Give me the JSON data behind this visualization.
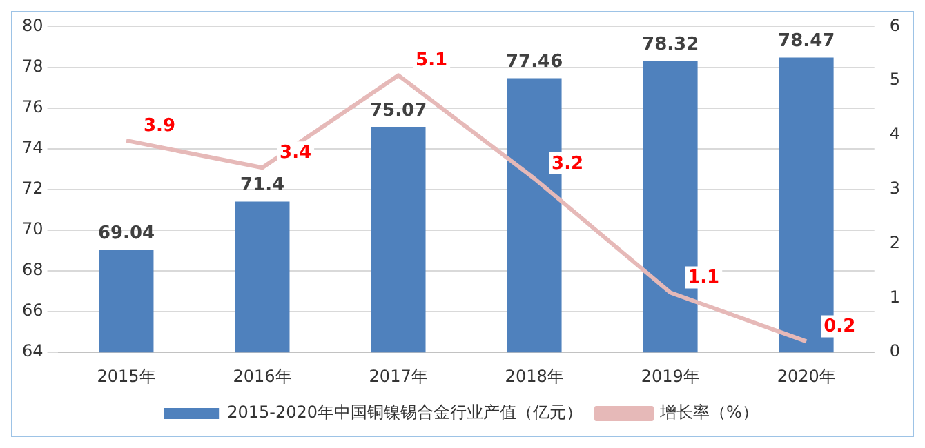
{
  "chart_data": {
    "type": "bar",
    "categories": [
      "2015年",
      "2016年",
      "2017年",
      "2018年",
      "2019年",
      "2020年"
    ],
    "series": [
      {
        "name": "2015-2020年中国铜镍锡合金行业产值（亿元）",
        "color": "#4f81bd",
        "values": [
          69.04,
          71.4,
          75.07,
          77.46,
          78.32,
          78.47
        ]
      },
      {
        "name": "增长率（%）",
        "type": "line",
        "axis": "y2",
        "color": "#e6b9b8",
        "values": [
          3.9,
          3.4,
          5.1,
          3.2,
          1.1,
          0.2
        ]
      }
    ],
    "ylim": [
      64,
      80
    ],
    "yticks": [
      64,
      66,
      68,
      70,
      72,
      74,
      76,
      78,
      80
    ],
    "y2lim": [
      0,
      6
    ],
    "y2ticks": [
      0,
      1,
      2,
      3,
      4,
      5,
      6
    ],
    "grid": "y",
    "legend": "bottom",
    "data_labels": true,
    "marker": "none",
    "line_style": "solid"
  }
}
